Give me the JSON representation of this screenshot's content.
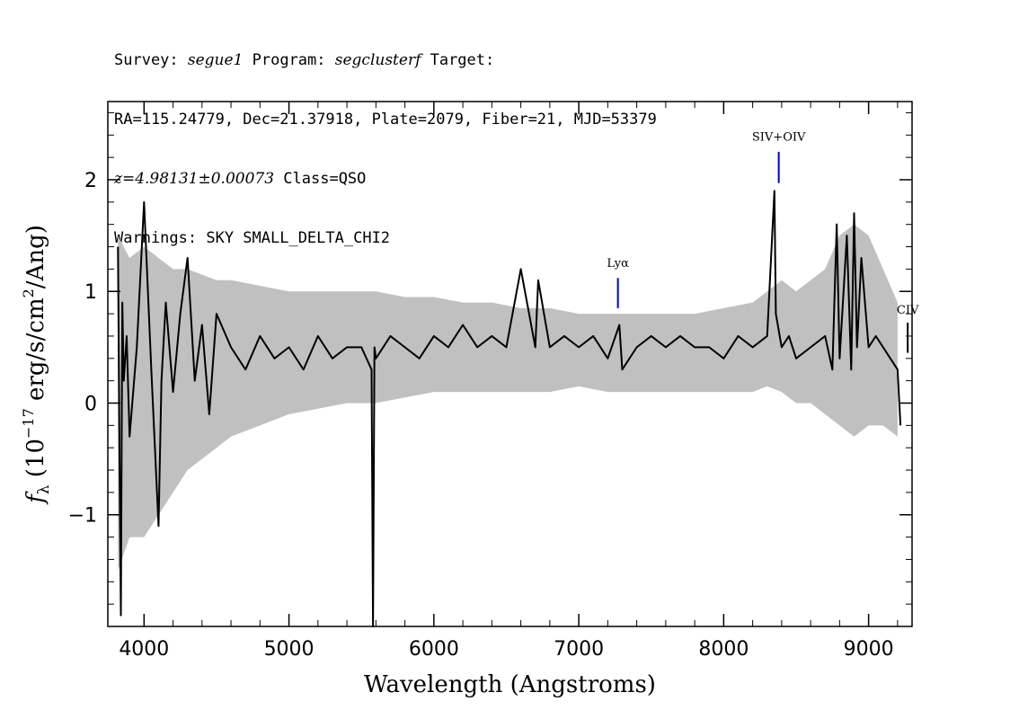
{
  "header": {
    "line1_survey_label": "Survey: ",
    "line1_survey": "segue1",
    "line1_program_label": " Program: ",
    "line1_program": "segclusterf",
    "line1_target_label": " Target:",
    "line2": "RA=115.24779, Dec=21.37918, Plate=2079, Fiber=21, MJD=53379",
    "line3_z": "z=4.98131±0.00073",
    "line3_class": " Class=QSO",
    "line4": "Warnings: SKY SMALL_DELTA_CHI2"
  },
  "chart_data": {
    "type": "line",
    "xlabel": "Wavelength (Angstroms)",
    "ylabel": "f_λ (10^-17 erg/s/cm^2/Ang)",
    "xlim": [
      3750,
      9300
    ],
    "ylim": [
      -2.0,
      2.7
    ],
    "x_ticks": [
      4000,
      5000,
      6000,
      7000,
      8000,
      9000
    ],
    "y_ticks": [
      -1,
      0,
      1,
      2
    ],
    "series": [
      {
        "style": "error band",
        "color": "#c0c0c0",
        "x": [
          3820,
          3900,
          4000,
          4100,
          4200,
          4300,
          4400,
          4500,
          4600,
          4800,
          5000,
          5200,
          5400,
          5600,
          5800,
          6000,
          6200,
          6400,
          6600,
          6800,
          7000,
          7200,
          7400,
          7600,
          7800,
          8000,
          8200,
          8300,
          8400,
          8500,
          8600,
          8700,
          8800,
          8900,
          9000,
          9100,
          9200
        ],
        "upper": [
          1.5,
          1.3,
          1.4,
          1.3,
          1.2,
          1.2,
          1.15,
          1.1,
          1.1,
          1.05,
          1.0,
          1.0,
          1.0,
          1.0,
          0.95,
          0.95,
          0.9,
          0.9,
          0.85,
          0.85,
          0.8,
          0.8,
          0.8,
          0.8,
          0.8,
          0.85,
          0.9,
          1.0,
          1.1,
          1.0,
          1.1,
          1.2,
          1.5,
          1.6,
          1.5,
          1.2,
          0.9
        ],
        "lower": [
          -1.5,
          -1.2,
          -1.2,
          -1.0,
          -0.8,
          -0.6,
          -0.5,
          -0.4,
          -0.3,
          -0.2,
          -0.1,
          -0.05,
          0.0,
          0.0,
          0.05,
          0.1,
          0.1,
          0.1,
          0.1,
          0.1,
          0.15,
          0.1,
          0.1,
          0.1,
          0.1,
          0.1,
          0.1,
          0.15,
          0.1,
          0.0,
          0.0,
          -0.1,
          -0.2,
          -0.3,
          -0.2,
          -0.2,
          -0.3
        ]
      },
      {
        "style": "flux",
        "color": "#000000",
        "x": [
          3820,
          3830,
          3840,
          3850,
          3860,
          3880,
          3900,
          3950,
          4000,
          4050,
          4100,
          4120,
          4150,
          4200,
          4250,
          4300,
          4350,
          4400,
          4450,
          4500,
          4600,
          4700,
          4800,
          4900,
          5000,
          5100,
          5200,
          5300,
          5400,
          5500,
          5570,
          5580,
          5590,
          5600,
          5700,
          5800,
          5900,
          6000,
          6100,
          6200,
          6300,
          6400,
          6500,
          6600,
          6700,
          6720,
          6800,
          6900,
          7000,
          7100,
          7200,
          7280,
          7300,
          7400,
          7500,
          7600,
          7700,
          7800,
          7900,
          8000,
          8100,
          8200,
          8300,
          8350,
          8360,
          8400,
          8450,
          8500,
          8600,
          8700,
          8750,
          8780,
          8800,
          8850,
          8880,
          8900,
          8920,
          8950,
          9000,
          9050,
          9100,
          9150,
          9200,
          9220
        ],
        "y": [
          1.4,
          -0.4,
          -1.9,
          0.9,
          0.2,
          0.6,
          -0.3,
          0.5,
          1.8,
          0.3,
          -1.1,
          0.2,
          0.9,
          0.1,
          0.8,
          1.3,
          0.2,
          0.7,
          -0.1,
          0.8,
          0.5,
          0.3,
          0.6,
          0.4,
          0.5,
          0.3,
          0.6,
          0.4,
          0.5,
          0.5,
          0.3,
          -2.0,
          0.5,
          0.4,
          0.6,
          0.5,
          0.4,
          0.6,
          0.5,
          0.7,
          0.5,
          0.6,
          0.5,
          1.2,
          0.5,
          1.1,
          0.5,
          0.6,
          0.5,
          0.6,
          0.4,
          0.7,
          0.3,
          0.5,
          0.6,
          0.5,
          0.6,
          0.5,
          0.5,
          0.4,
          0.6,
          0.5,
          0.6,
          1.9,
          0.8,
          0.5,
          0.6,
          0.4,
          0.5,
          0.6,
          0.3,
          1.6,
          0.4,
          1.5,
          0.3,
          1.7,
          0.5,
          1.3,
          0.5,
          0.6,
          0.5,
          0.4,
          0.3,
          -0.2
        ]
      }
    ],
    "line_markers": [
      {
        "label": "Lyα",
        "x": 7270,
        "y_bottom": 0.85,
        "y_top": 1.12,
        "label_y": 1.22,
        "color": "#0000cc"
      },
      {
        "label": "SIV+OIV",
        "x": 8380,
        "y_bottom": 1.97,
        "y_top": 2.25,
        "label_y": 2.35,
        "color": "#0000cc"
      },
      {
        "label": "CIV",
        "x": 9270,
        "y_bottom": 0.45,
        "y_top": 0.72,
        "label_y": 0.8,
        "color": "#000000"
      }
    ]
  }
}
